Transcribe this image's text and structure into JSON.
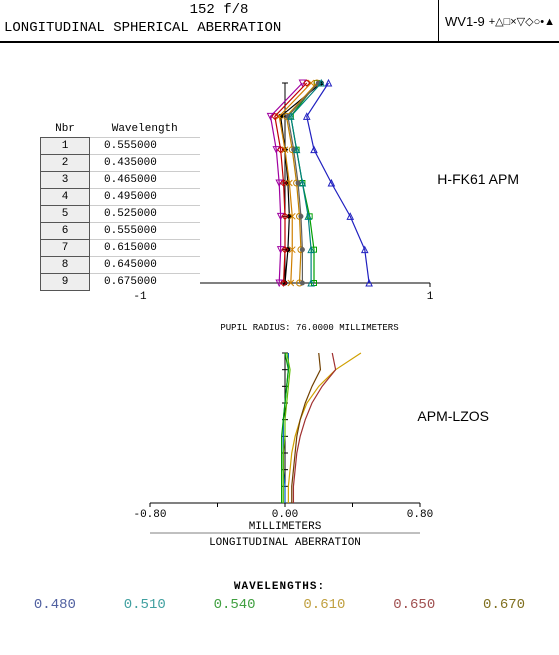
{
  "header": {
    "line1": "152 f/8",
    "line2": "LONGITUDINAL SPHERICAL ABERRATION",
    "legend_label": "WV1-9",
    "legend_symbols": "+△□×▽◇○•▲"
  },
  "table": {
    "col1": "Nbr",
    "col2": "Wavelength",
    "rows": [
      {
        "n": "1",
        "wl": "0.555000"
      },
      {
        "n": "2",
        "wl": "0.435000"
      },
      {
        "n": "3",
        "wl": "0.465000"
      },
      {
        "n": "4",
        "wl": "0.495000"
      },
      {
        "n": "5",
        "wl": "0.525000"
      },
      {
        "n": "6",
        "wl": "0.555000"
      },
      {
        "n": "7",
        "wl": "0.615000"
      },
      {
        "n": "8",
        "wl": "0.645000"
      },
      {
        "n": "9",
        "wl": "0.675000"
      }
    ]
  },
  "chart1": {
    "type": "longitudinal-aberration",
    "label": "H-FK61 APM",
    "xlim": [
      -1,
      1
    ],
    "xtick_labels": [
      "-1",
      "1"
    ],
    "y_levels": [
      0,
      0.167,
      0.333,
      0.5,
      0.667,
      0.833,
      1.0
    ],
    "series": [
      {
        "color": "#000000",
        "marker": "dot",
        "x": [
          0.0,
          0.02,
          0.03,
          0.02,
          0.0,
          -0.03,
          0.25
        ]
      },
      {
        "color": "#2020c0",
        "marker": "triangle",
        "x": [
          0.58,
          0.55,
          0.45,
          0.32,
          0.2,
          0.15,
          0.3
        ]
      },
      {
        "color": "#00a000",
        "marker": "square",
        "x": [
          0.2,
          0.2,
          0.17,
          0.12,
          0.08,
          0.04,
          0.22
        ]
      },
      {
        "color": "#d08000",
        "marker": "x",
        "x": [
          0.04,
          0.05,
          0.05,
          0.03,
          0.0,
          -0.04,
          0.18
        ]
      },
      {
        "color": "#a000a0",
        "marker": "tri-down",
        "x": [
          -0.04,
          -0.03,
          -0.03,
          -0.04,
          -0.06,
          -0.1,
          0.12
        ]
      },
      {
        "color": "#c00000",
        "marker": "diamond",
        "x": [
          -0.01,
          0.0,
          0.0,
          -0.01,
          -0.03,
          -0.07,
          0.15
        ]
      },
      {
        "color": "#c08000",
        "marker": "circle",
        "x": [
          0.1,
          0.11,
          0.1,
          0.08,
          0.05,
          0.01,
          0.22
        ]
      },
      {
        "color": "#606060",
        "marker": "dot",
        "x": [
          0.12,
          0.12,
          0.11,
          0.09,
          0.06,
          0.02,
          0.23
        ]
      },
      {
        "color": "#008080",
        "marker": "tri-up",
        "x": [
          0.18,
          0.18,
          0.16,
          0.12,
          0.08,
          0.04,
          0.25
        ]
      }
    ],
    "axis_color": "#000000",
    "background": "#ffffff"
  },
  "chart2": {
    "type": "longitudinal-aberration",
    "title_top": "PUPIL RADIUS: 76.0000 MILLIMETERS",
    "label": "APM-LZOS",
    "xlim": [
      -0.8,
      0.8
    ],
    "xtick_labels": [
      "-0.80",
      "0.00",
      "0.80"
    ],
    "xlabel": "MILLIMETERS",
    "bottom_label": "LONGITUDINAL ABERRATION",
    "y_levels": [
      0,
      0.111,
      0.222,
      0.333,
      0.444,
      0.556,
      0.667,
      0.778,
      0.889,
      1.0
    ],
    "series": [
      {
        "color": "#0060c0",
        "x": [
          0.0,
          0.0,
          -0.01,
          -0.01,
          -0.01,
          -0.01,
          0.0,
          0.01,
          0.02,
          0.02
        ]
      },
      {
        "color": "#00a000",
        "x": [
          -0.02,
          -0.02,
          -0.02,
          -0.02,
          -0.02,
          -0.01,
          0.0,
          0.01,
          0.02,
          0.0
        ]
      },
      {
        "color": "#60c000",
        "x": [
          -0.01,
          -0.01,
          -0.01,
          -0.01,
          0.0,
          0.0,
          0.01,
          0.02,
          0.03,
          0.01
        ]
      },
      {
        "color": "#d0a000",
        "x": [
          0.02,
          0.02,
          0.03,
          0.04,
          0.06,
          0.09,
          0.13,
          0.2,
          0.3,
          0.45
        ]
      },
      {
        "color": "#a03030",
        "x": [
          0.05,
          0.05,
          0.06,
          0.07,
          0.09,
          0.12,
          0.16,
          0.22,
          0.3,
          0.28
        ]
      },
      {
        "color": "#704000",
        "x": [
          0.04,
          0.04,
          0.05,
          0.06,
          0.07,
          0.09,
          0.12,
          0.16,
          0.21,
          0.2
        ]
      }
    ],
    "axis_color": "#000000",
    "tick_positions": [
      -0.8,
      -0.4,
      0.0,
      0.4,
      0.8
    ]
  },
  "footer": {
    "title": "WAVELENGTHS:",
    "values": [
      {
        "text": "0.480",
        "color": "#5060a0"
      },
      {
        "text": "0.510",
        "color": "#40a0a0"
      },
      {
        "text": "0.540",
        "color": "#40a040"
      },
      {
        "text": "0.610",
        "color": "#c0a040"
      },
      {
        "text": "0.650",
        "color": "#a05050"
      },
      {
        "text": "0.670",
        "color": "#807020"
      }
    ]
  }
}
